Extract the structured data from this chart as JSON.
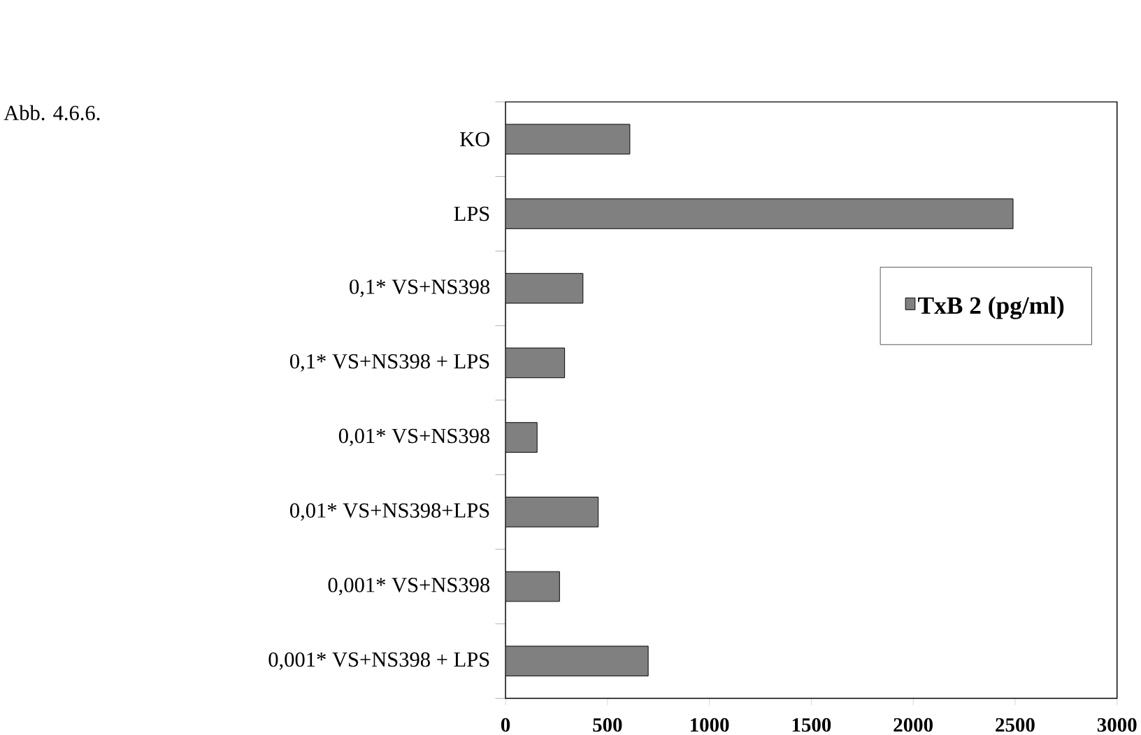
{
  "chart_data": {
    "type": "bar",
    "orientation": "horizontal",
    "categories": [
      "KO",
      "LPS",
      "0,1* VS+NS398",
      "0,1* VS+NS398 + LPS",
      "0,01* VS+NS398",
      "0,01* VS+NS398+LPS",
      "0,001* VS+NS398",
      "0,001* VS+NS398 + LPS"
    ],
    "series": [
      {
        "name": "TxB 2 (pg/ml)",
        "color": "#808080",
        "values": [
          610,
          2490,
          380,
          290,
          155,
          455,
          265,
          700
        ]
      }
    ],
    "xlim": [
      0,
      3000
    ],
    "xticks": [
      0,
      500,
      1000,
      1500,
      2000,
      2500,
      3000
    ],
    "legend": "right",
    "grid": false,
    "annotations": [
      "Abb. 4.6.6."
    ]
  }
}
